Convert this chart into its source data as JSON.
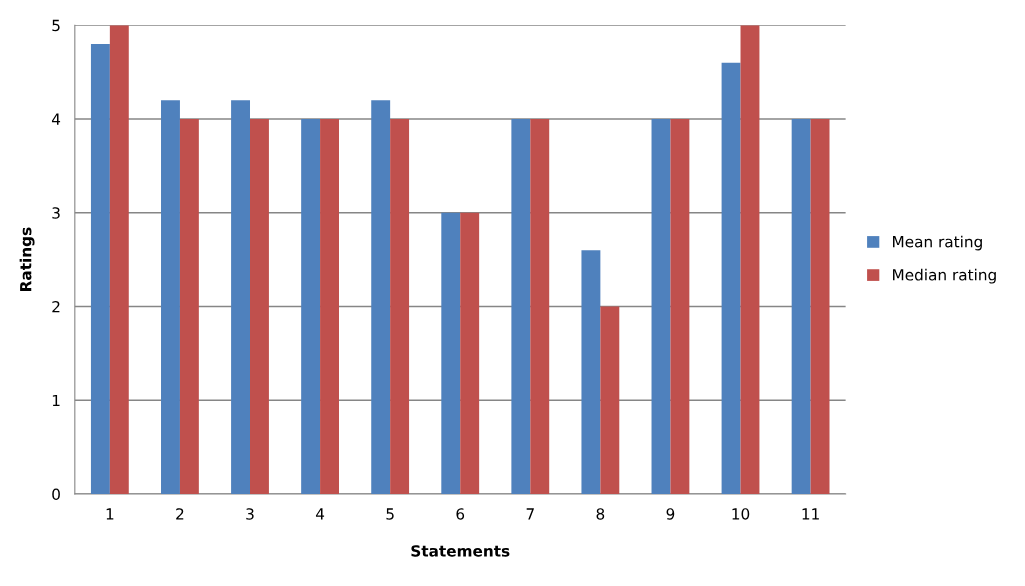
{
  "chart_data": {
    "type": "bar",
    "xlabel": "Statements",
    "ylabel": "Ratings",
    "categories": [
      "1",
      "2",
      "3",
      "4",
      "5",
      "6",
      "7",
      "8",
      "9",
      "10",
      "11"
    ],
    "series": [
      {
        "name": "Mean rating",
        "color": "#4f81bd",
        "values": [
          4.8,
          4.2,
          4.2,
          4,
          4.2,
          3,
          4,
          2.6,
          4,
          4.6,
          4
        ]
      },
      {
        "name": "Median rating",
        "color": "#c0504d",
        "values": [
          5,
          4,
          4,
          4,
          4,
          3,
          4,
          2,
          4,
          5,
          4
        ]
      }
    ],
    "ylim": [
      0,
      5
    ],
    "yticks": [
      0,
      1,
      2,
      3,
      4,
      5
    ],
    "grid": "y",
    "legend": "right"
  }
}
